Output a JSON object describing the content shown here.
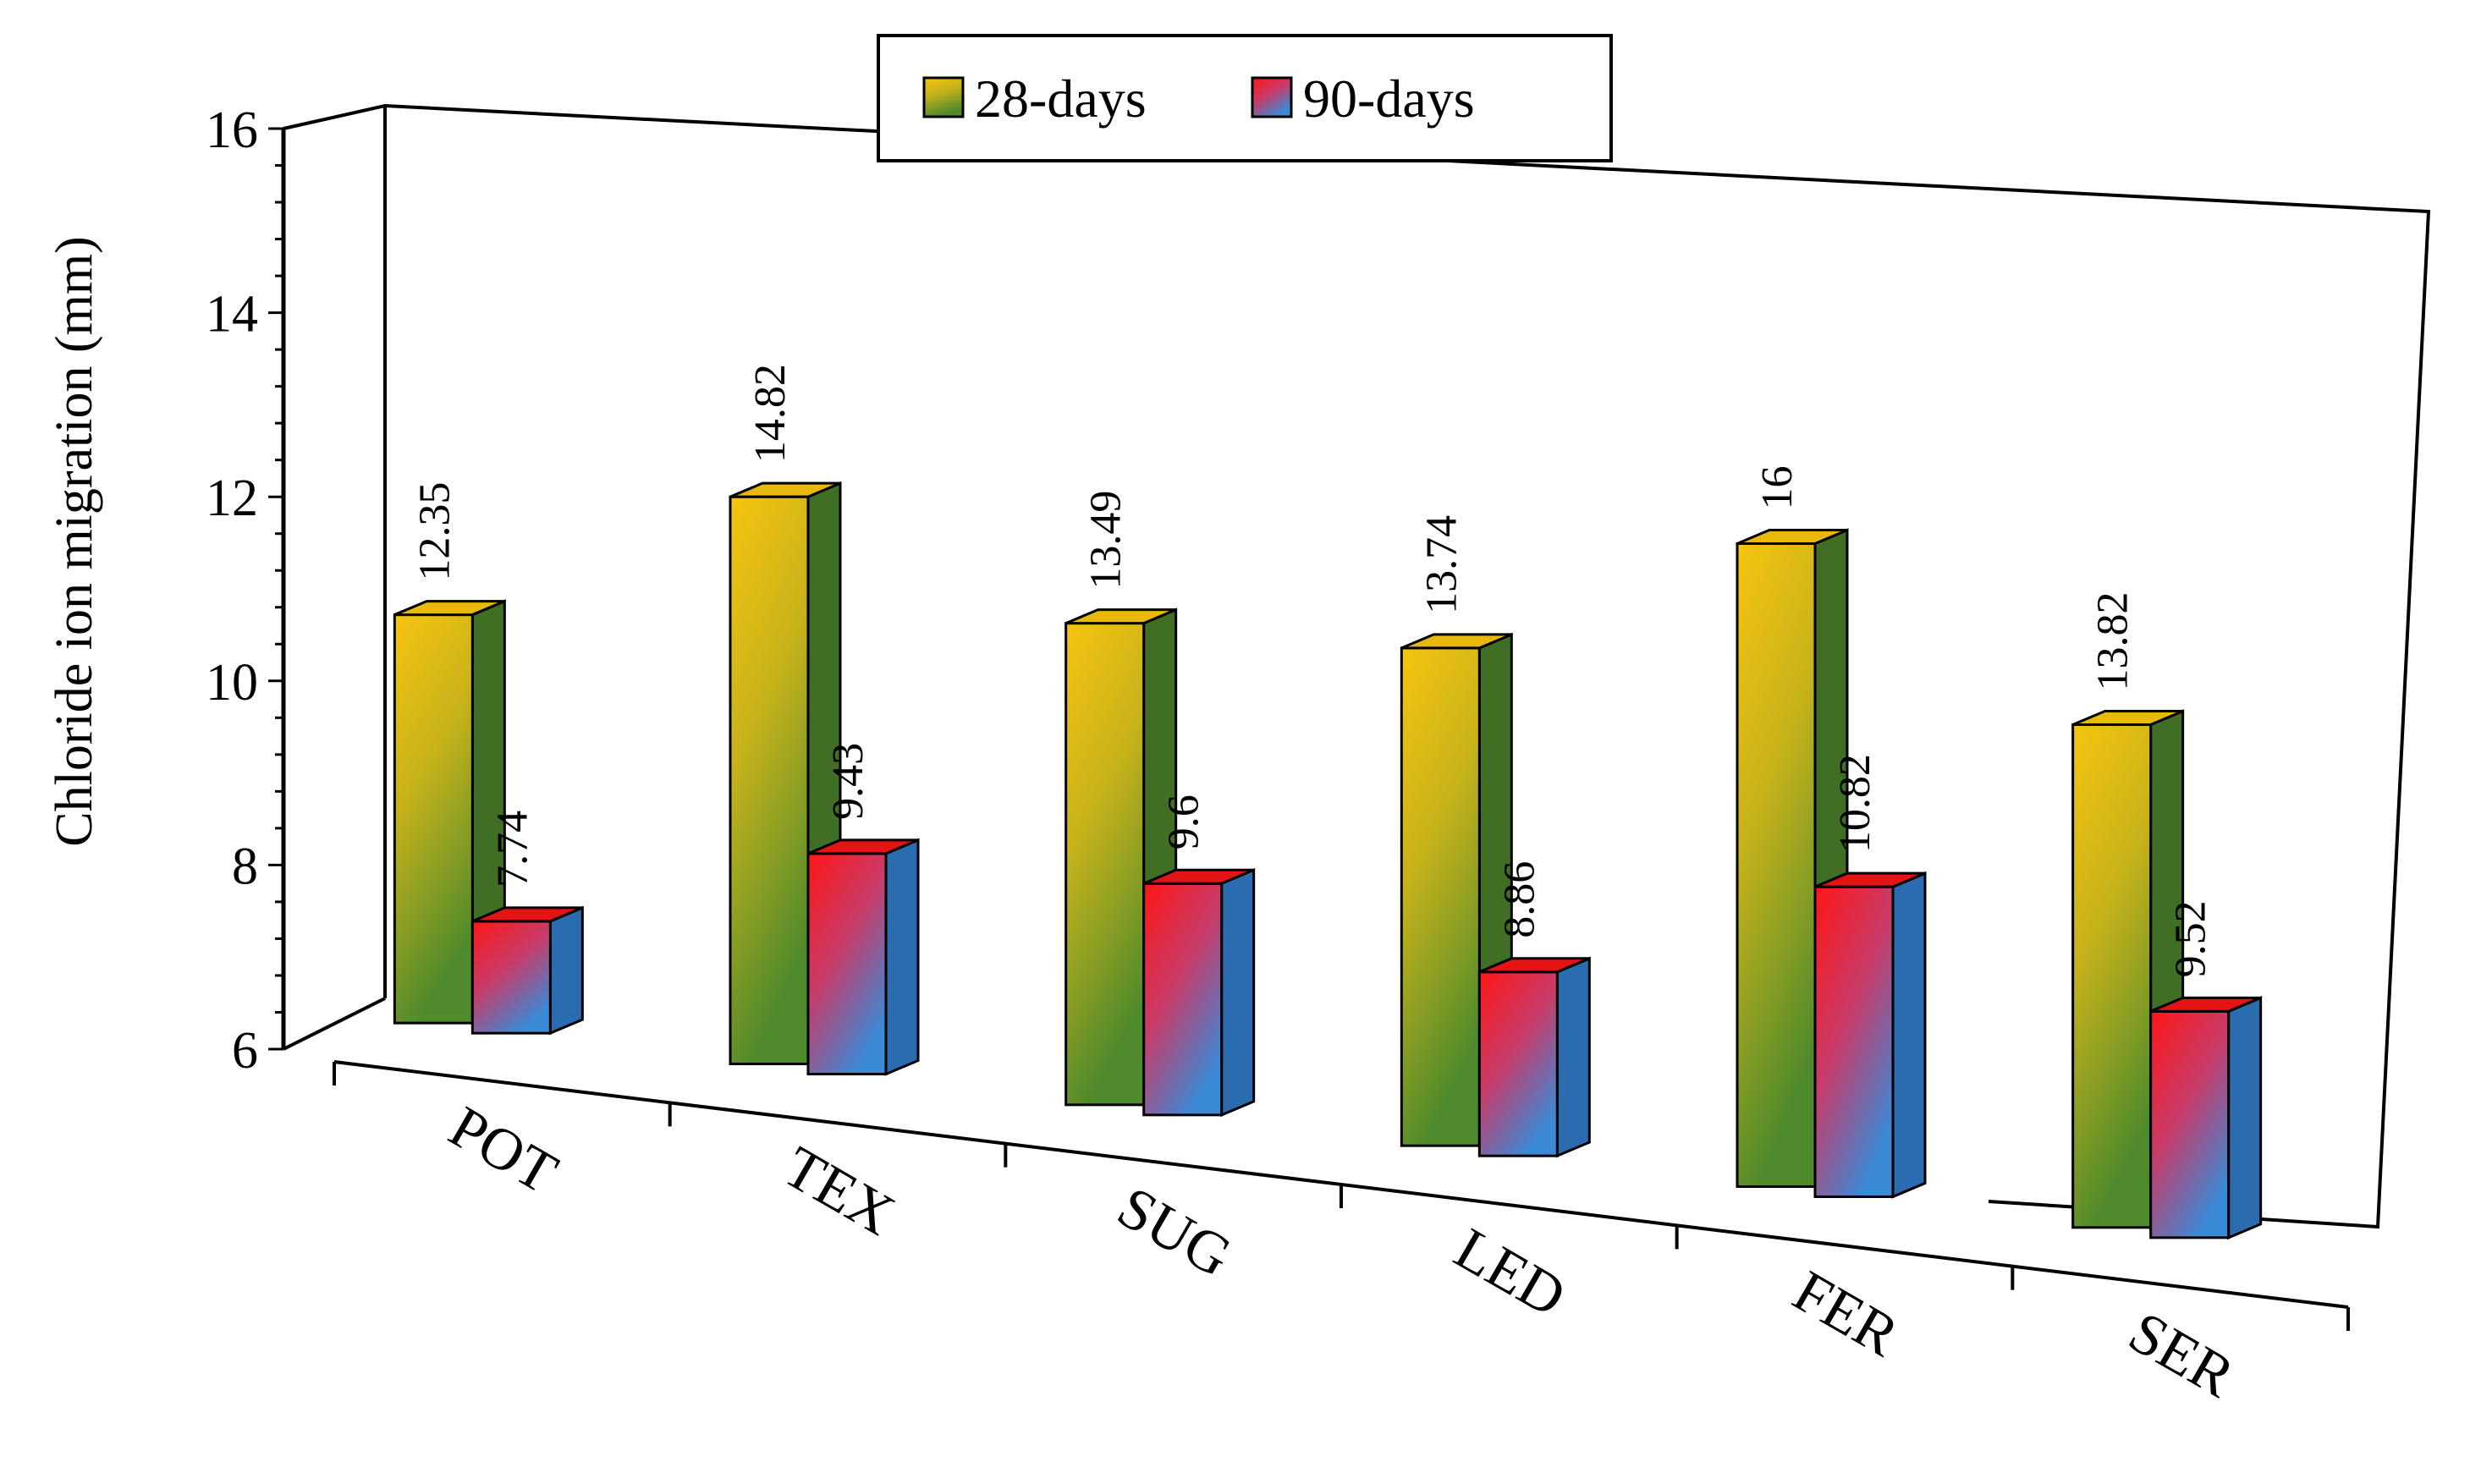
{
  "chart_data": {
    "type": "bar",
    "style": "3d-clustered",
    "title": "",
    "xlabel": "",
    "ylabel": "Chloride ion migration (mm)",
    "ylim": [
      6,
      16
    ],
    "yticks": [
      6,
      8,
      10,
      12,
      14,
      16
    ],
    "categories": [
      "POT",
      "TEX",
      "SUG",
      "LED",
      "FER",
      "SER"
    ],
    "series": [
      {
        "name": "28-days",
        "values": [
          12.35,
          14.82,
          13.49,
          13.74,
          16,
          13.82
        ],
        "labels": [
          "12.35",
          "14.82",
          "13.49",
          "13.74",
          "16",
          "13.82"
        ],
        "colors": {
          "front_top": "#f4c20d",
          "front_bottom": "#4e8a2b",
          "side": "#3f6e24",
          "cap": "#e8b90a"
        }
      },
      {
        "name": "90-days",
        "values": [
          7.74,
          9.43,
          9.6,
          8.86,
          10.82,
          9.52
        ],
        "labels": [
          "7.74",
          "9.43",
          "9.6",
          "8.86",
          "10.82",
          "9.52"
        ],
        "colors": {
          "front_top": "#ff1a1a",
          "front_bottom": "#3d86cf",
          "side": "#2b6bb0",
          "cap": "#e51414"
        }
      }
    ],
    "legend": {
      "position": "top-center",
      "entries": [
        "28-days",
        "90-days"
      ]
    },
    "grid": false
  }
}
